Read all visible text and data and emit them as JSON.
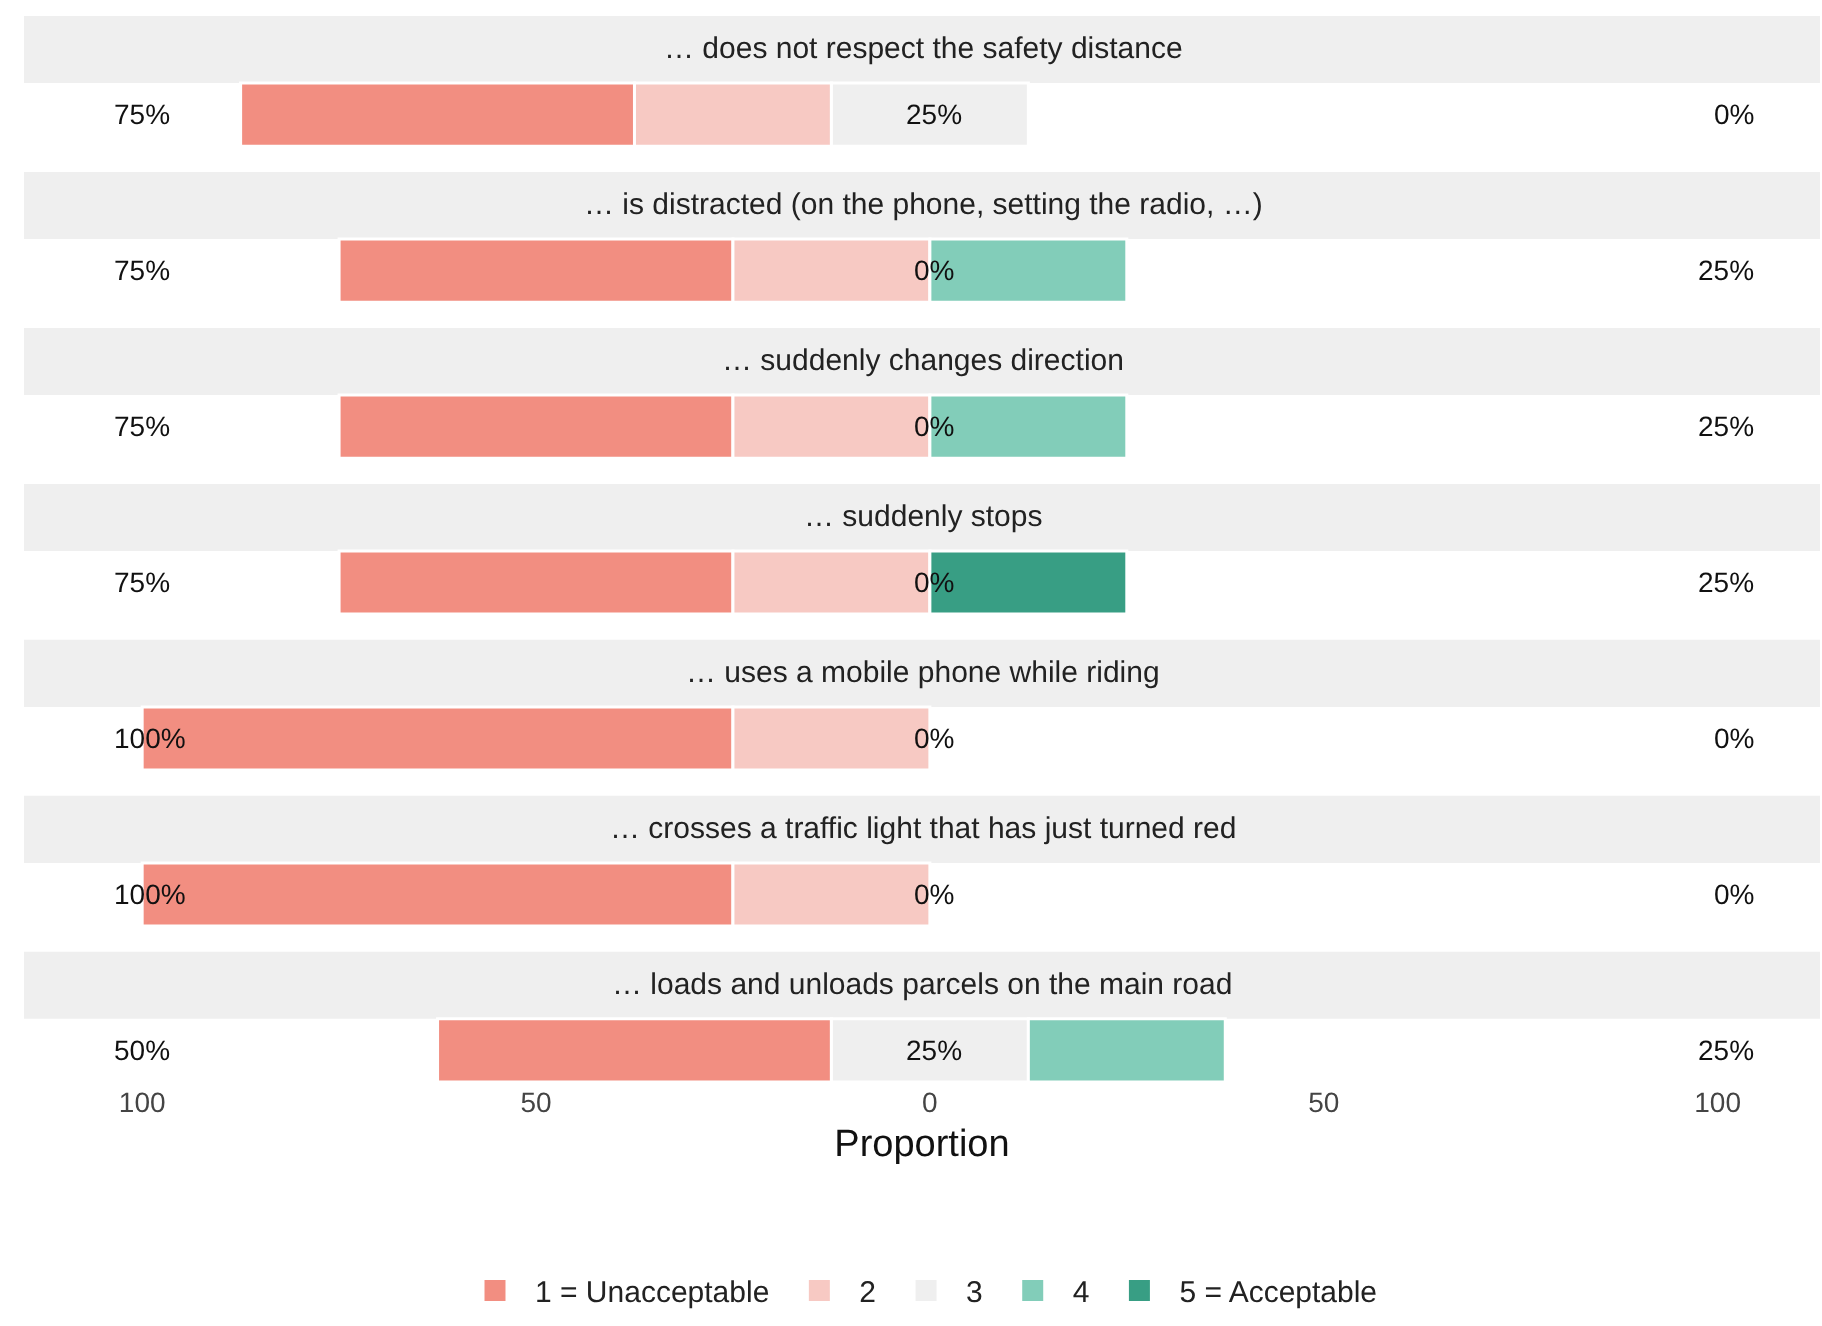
{
  "chart_data": {
    "type": "bar",
    "orientation": "horizontal",
    "xlabel": "Proportion",
    "legend": "bottom",
    "xlim": [
      -115,
      113
    ],
    "xticks": [
      {
        "value": -100,
        "label": "100"
      },
      {
        "value": -50,
        "label": "50"
      },
      0,
      50,
      100
    ],
    "categories": [
      "… does not respect the safety distance",
      "… is distracted (on the phone, setting the radio, …)",
      "… suddenly changes direction",
      "… suddenly stops",
      "… uses a mobile phone while riding",
      "… crosses a traffic light that has just turned red",
      "… loads and unloads parcels on the main road"
    ],
    "series": [
      {
        "name": "1 = Unacceptable",
        "color": "#f28e81",
        "values": [
          50,
          50,
          50,
          50,
          75,
          75,
          50
        ],
        "base": [
          -87.5,
          -75,
          -75,
          -75,
          -100,
          -100,
          -62.5
        ]
      },
      {
        "name": "2",
        "color": "#f7c9c3",
        "values": [
          25,
          25,
          25,
          25,
          25,
          25,
          null
        ],
        "base": [
          -37.5,
          -25,
          -25,
          -25,
          -25,
          -25,
          null
        ]
      },
      {
        "name": "3",
        "color": "#efefef",
        "values": [
          25,
          null,
          null,
          null,
          null,
          null,
          25
        ],
        "base": [
          -12.5,
          null,
          null,
          null,
          null,
          null,
          -12.5
        ]
      },
      {
        "name": "4",
        "color": "#82cdb9",
        "values": [
          null,
          25,
          25,
          null,
          null,
          null,
          25
        ],
        "base": [
          null,
          0,
          0,
          null,
          null,
          null,
          12.5
        ]
      },
      {
        "name": "5 = Acceptable",
        "color": "#389e84",
        "values": [
          null,
          null,
          null,
          25,
          null,
          null,
          null
        ],
        "base": [
          null,
          null,
          null,
          0,
          null,
          null,
          null
        ]
      }
    ],
    "annotations": [
      "75%",
      "25%",
      "0%",
      "75%",
      "0%",
      "25%",
      "75%",
      "0%",
      "25%",
      "75%",
      "0%",
      "25%",
      "100%",
      "0%",
      "0%",
      "100%",
      "0%",
      "0%",
      "50%",
      "25%",
      "25%"
    ]
  }
}
